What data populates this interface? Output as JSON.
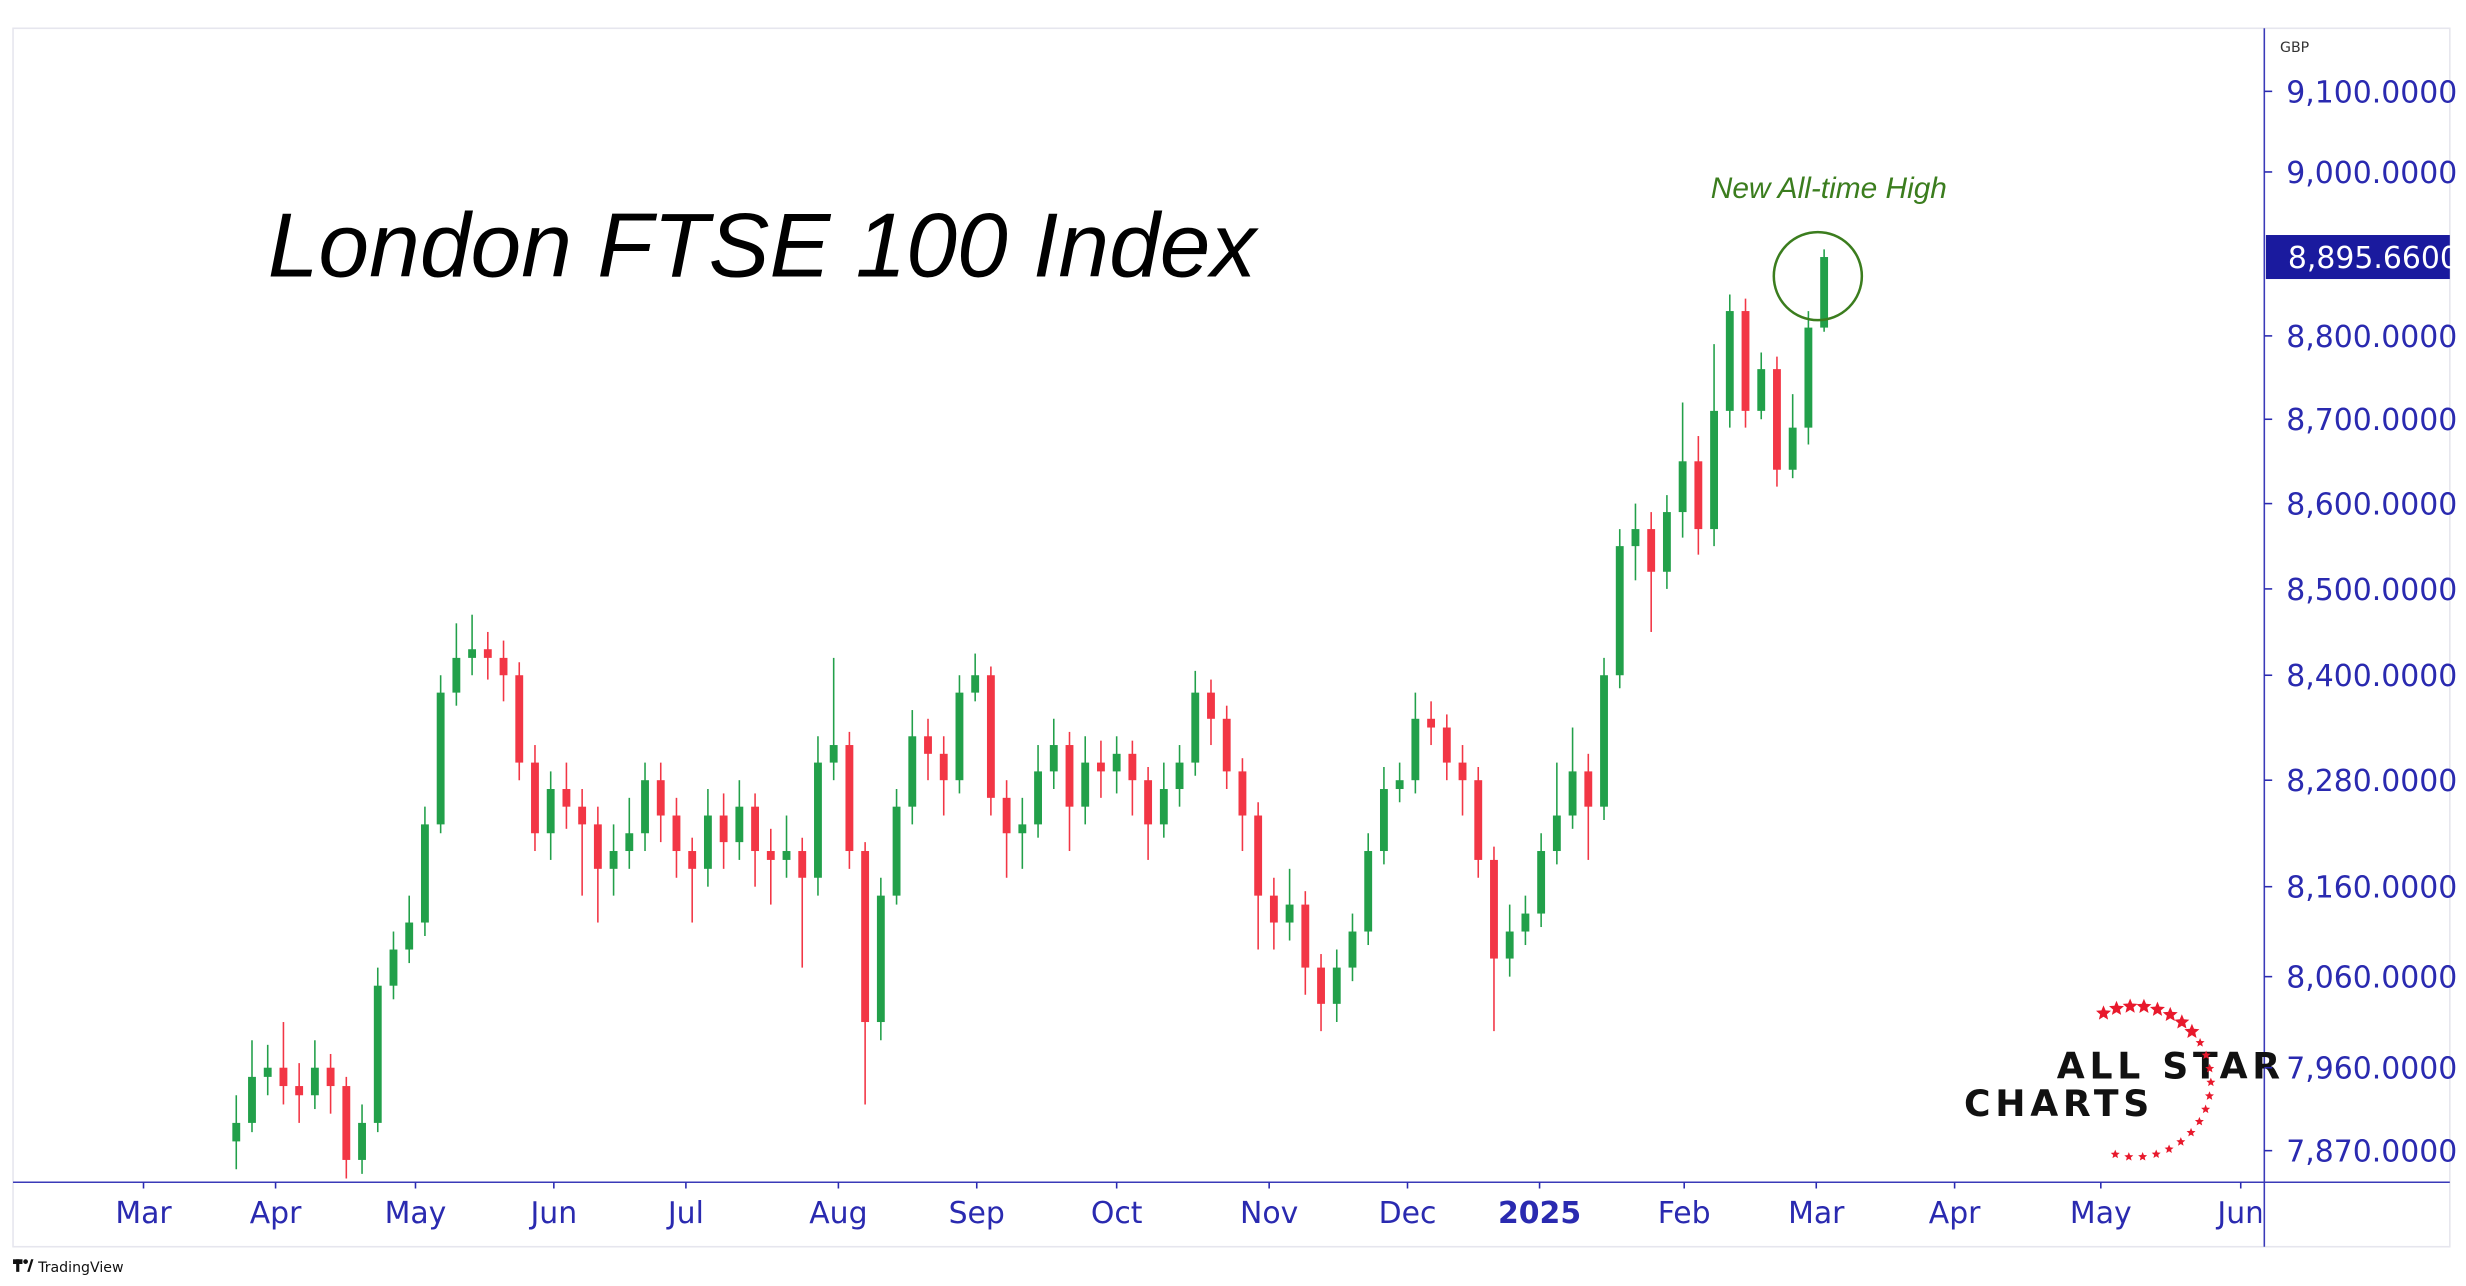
{
  "chart_data": {
    "type": "candlestick",
    "title": "London FTSE 100 Index",
    "annotation": "New All-time High",
    "currency": "GBP",
    "brand": [
      "ALL STAR",
      "CHARTS"
    ],
    "footer": "TradingView",
    "log_scale": true,
    "up_color": "#22a04a",
    "down_color": "#f23645",
    "annotation_color": "#3b7d1e",
    "axis_color": "#2a2ab0",
    "close_label": "8,895.6600",
    "open": [
      7880,
      7900,
      7950,
      7960,
      7940,
      7930,
      7960,
      7940,
      7860,
      7900,
      8050,
      8090,
      8120,
      8230,
      8380,
      8420,
      8430,
      8420,
      8400,
      8300,
      8220,
      8270,
      8250,
      8230,
      8180,
      8200,
      8220,
      8280,
      8240,
      8200,
      8180,
      8240,
      8210,
      8250,
      8200,
      8190,
      8200,
      8170,
      8300,
      8320,
      8200,
      8010,
      8150,
      8250,
      8330,
      8310,
      8280,
      8380,
      8400,
      8260,
      8220,
      8230,
      8290,
      8320,
      8250,
      8300,
      8290,
      8310,
      8280,
      8230,
      8270,
      8300,
      8380,
      8350,
      8290,
      8240,
      8150,
      8120,
      8140,
      8070,
      8030,
      8070,
      8110,
      8200,
      8270,
      8280,
      8350,
      8340,
      8300,
      8280,
      8190,
      8080,
      8110,
      8130,
      8200,
      8240,
      8290,
      8250,
      8400,
      8550,
      8570,
      8520,
      8590,
      8650,
      8570,
      8710,
      8830,
      8710,
      8760,
      8640,
      8690,
      8810
    ],
    "high": [
      7930,
      7990,
      7985,
      8010,
      7965,
      7990,
      7975,
      7950,
      7920,
      8070,
      8110,
      8150,
      8250,
      8400,
      8460,
      8470,
      8450,
      8440,
      8415,
      8320,
      8290,
      8300,
      8270,
      8250,
      8230,
      8260,
      8300,
      8300,
      8260,
      8215,
      8270,
      8265,
      8280,
      8265,
      8225,
      8240,
      8215,
      8330,
      8420,
      8335,
      8210,
      8170,
      8270,
      8360,
      8350,
      8330,
      8400,
      8425,
      8410,
      8280,
      8260,
      8320,
      8350,
      8335,
      8330,
      8325,
      8330,
      8325,
      8295,
      8300,
      8320,
      8405,
      8395,
      8365,
      8305,
      8255,
      8170,
      8180,
      8155,
      8085,
      8090,
      8130,
      8220,
      8295,
      8300,
      8380,
      8370,
      8355,
      8320,
      8295,
      8205,
      8140,
      8150,
      8220,
      8300,
      8340,
      8310,
      8420,
      8570,
      8600,
      8590,
      8610,
      8720,
      8680,
      8790,
      8850,
      8845,
      8780,
      8775,
      8730,
      8830,
      8905
    ],
    "low": [
      7850,
      7890,
      7930,
      7920,
      7900,
      7915,
      7910,
      7840,
      7845,
      7890,
      8035,
      8075,
      8105,
      8220,
      8365,
      8400,
      8395,
      8370,
      8280,
      8200,
      8190,
      8225,
      8150,
      8120,
      8150,
      8180,
      8200,
      8210,
      8170,
      8120,
      8160,
      8180,
      8190,
      8160,
      8140,
      8170,
      8070,
      8150,
      8280,
      8180,
      7920,
      7990,
      8140,
      8230,
      8280,
      8240,
      8265,
      8370,
      8240,
      8170,
      8180,
      8215,
      8270,
      8200,
      8230,
      8260,
      8265,
      8240,
      8190,
      8215,
      8250,
      8285,
      8320,
      8270,
      8200,
      8090,
      8090,
      8100,
      8040,
      8000,
      8010,
      8055,
      8095,
      8185,
      8255,
      8265,
      8320,
      8280,
      8240,
      8170,
      8000,
      8060,
      8095,
      8115,
      8185,
      8225,
      8190,
      8235,
      8385,
      8510,
      8450,
      8500,
      8560,
      8540,
      8550,
      8690,
      8690,
      8700,
      8620,
      8630,
      8670,
      8805
    ],
    "close": [
      7900,
      7950,
      7960,
      7940,
      7930,
      7960,
      7940,
      7860,
      7900,
      8050,
      8090,
      8120,
      8230,
      8380,
      8420,
      8430,
      8420,
      8400,
      8300,
      8220,
      8270,
      8250,
      8230,
      8180,
      8200,
      8220,
      8280,
      8240,
      8200,
      8180,
      8240,
      8210,
      8250,
      8200,
      8190,
      8200,
      8170,
      8300,
      8320,
      8200,
      8010,
      8150,
      8250,
      8330,
      8310,
      8280,
      8380,
      8400,
      8260,
      8220,
      8230,
      8290,
      8320,
      8250,
      8300,
      8290,
      8310,
      8280,
      8230,
      8270,
      8300,
      8380,
      8350,
      8290,
      8240,
      8150,
      8120,
      8140,
      8070,
      8030,
      8070,
      8110,
      8200,
      8270,
      8280,
      8350,
      8340,
      8300,
      8280,
      8190,
      8080,
      8110,
      8130,
      8200,
      8240,
      8290,
      8250,
      8400,
      8550,
      8570,
      8520,
      8590,
      8650,
      8570,
      8710,
      8830,
      8710,
      8760,
      8640,
      8690,
      8810,
      8895.66
    ],
    "xlim": [
      -14.2,
      129
    ],
    "xticks": [
      {
        "value": -5.9,
        "label": "Mar"
      },
      {
        "value": 2.5,
        "label": "Apr"
      },
      {
        "value": 11.4,
        "label": "May"
      },
      {
        "value": 20.2,
        "label": "Jun"
      },
      {
        "value": 28.6,
        "label": "Jul"
      },
      {
        "value": 38.3,
        "label": "Aug"
      },
      {
        "value": 47.1,
        "label": "Sep"
      },
      {
        "value": 56,
        "label": "Oct"
      },
      {
        "value": 65.7,
        "label": "Nov"
      },
      {
        "value": 74.5,
        "label": "Dec"
      },
      {
        "value": 82.9,
        "label": "2025",
        "bold": true
      },
      {
        "value": 92.1,
        "label": "Feb"
      },
      {
        "value": 100.5,
        "label": "Mar"
      },
      {
        "value": 109.3,
        "label": "Apr"
      },
      {
        "value": 118.6,
        "label": "May"
      },
      {
        "value": 127.5,
        "label": "Jun"
      }
    ],
    "ylim": [
      7836,
      9179
    ],
    "yticks": [
      {
        "value": 7870,
        "label": "7,870.0000"
      },
      {
        "value": 7960,
        "label": "7,960.0000"
      },
      {
        "value": 8060,
        "label": "8,060.0000"
      },
      {
        "value": 8160,
        "label": "8,160.0000"
      },
      {
        "value": 8280,
        "label": "8,280.0000"
      },
      {
        "value": 8400,
        "label": "8,400.0000"
      },
      {
        "value": 8500,
        "label": "8,500.0000"
      },
      {
        "value": 8600,
        "label": "8,600.0000"
      },
      {
        "value": 8700,
        "label": "8,700.0000"
      },
      {
        "value": 8800,
        "label": "8,800.0000"
      },
      {
        "value": 9000,
        "label": "9,000.0000"
      },
      {
        "value": 9100,
        "label": "9,100.0000"
      }
    ]
  }
}
